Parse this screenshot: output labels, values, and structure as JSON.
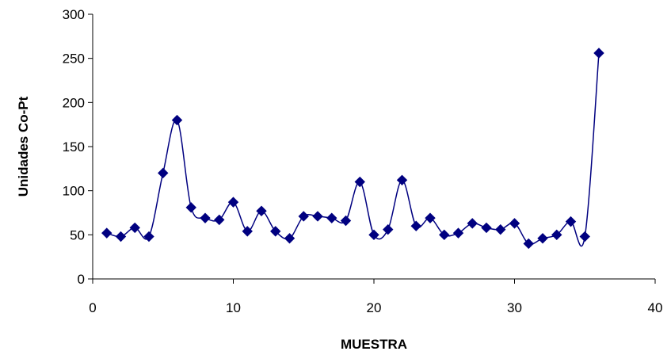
{
  "chart_data": {
    "type": "line",
    "title": "",
    "xlabel": "MUESTRA",
    "ylabel": "Unidades Co-Pt",
    "xlim": [
      0,
      40
    ],
    "ylim": [
      0,
      300
    ],
    "x_ticks": [
      0,
      10,
      20,
      30,
      40
    ],
    "y_ticks": [
      0,
      50,
      100,
      150,
      200,
      250,
      300
    ],
    "grid": false,
    "legend": "none",
    "marker": "diamond",
    "smooth": true,
    "colors": {
      "series": "#000080",
      "axis": "#000000"
    },
    "series": [
      {
        "x": [
          1,
          2,
          3,
          4,
          5,
          6,
          7,
          8,
          9,
          10,
          11,
          12,
          13,
          14,
          15,
          16,
          17,
          18,
          19,
          20,
          21,
          22,
          23,
          24,
          25,
          26,
          27,
          28,
          29,
          30,
          31,
          32,
          33,
          34,
          35,
          36
        ],
        "values": [
          52,
          48,
          58,
          48,
          120,
          180,
          81,
          69,
          67,
          87,
          54,
          77,
          54,
          46,
          71,
          71,
          69,
          66,
          110,
          50,
          56,
          112,
          60,
          69,
          50,
          52,
          63,
          58,
          56,
          63,
          40,
          46,
          50,
          65,
          48,
          256
        ]
      }
    ]
  }
}
